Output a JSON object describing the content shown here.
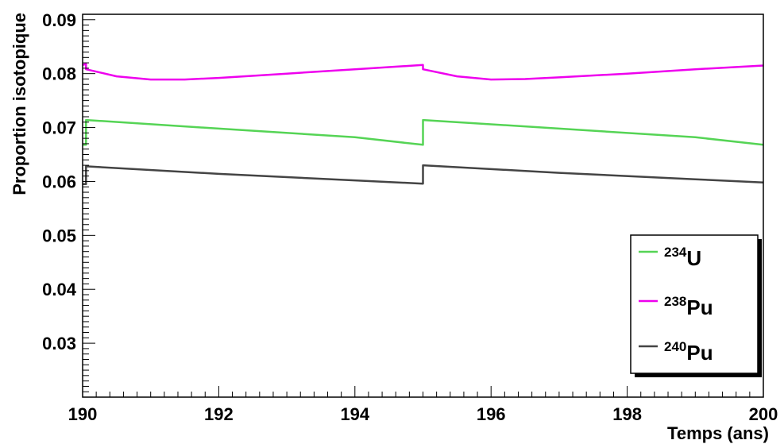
{
  "chart_data": {
    "type": "line",
    "xlabel": "Temps (ans)",
    "ylabel": "Proportion isotopique",
    "xlim": [
      190,
      200
    ],
    "ylim": [
      0.02,
      0.091
    ],
    "x_ticks": [
      "190",
      "192",
      "194",
      "196",
      "198",
      "200"
    ],
    "y_ticks": [
      "0.03",
      "0.04",
      "0.05",
      "0.06",
      "0.07",
      "0.08",
      "0.09"
    ],
    "grid": false,
    "legend_position": "bottom-right",
    "series": [
      {
        "name_sup": "234",
        "name_base": "U",
        "color": "#55d455",
        "points": [
          [
            190.0,
            0.0668
          ],
          [
            190.05,
            0.0668
          ],
          [
            190.05,
            0.0714
          ],
          [
            192.0,
            0.0698
          ],
          [
            194.0,
            0.0682
          ],
          [
            195.0,
            0.0668
          ],
          [
            195.0,
            0.0714
          ],
          [
            197.0,
            0.0698
          ],
          [
            199.0,
            0.0682
          ],
          [
            200.0,
            0.0668
          ]
        ]
      },
      {
        "name_sup": "238",
        "name_base": "Pu",
        "color": "#ee00ee",
        "points": [
          [
            190.0,
            0.0816
          ],
          [
            190.05,
            0.0818
          ],
          [
            190.05,
            0.0808
          ],
          [
            190.5,
            0.0795
          ],
          [
            191.0,
            0.0789
          ],
          [
            191.5,
            0.0789
          ],
          [
            192.0,
            0.0792
          ],
          [
            193.0,
            0.08
          ],
          [
            194.0,
            0.0808
          ],
          [
            195.0,
            0.0816
          ],
          [
            195.0,
            0.0808
          ],
          [
            195.5,
            0.0795
          ],
          [
            196.0,
            0.0789
          ],
          [
            196.5,
            0.079
          ],
          [
            197.0,
            0.0793
          ],
          [
            198.0,
            0.08
          ],
          [
            199.0,
            0.0808
          ],
          [
            200.0,
            0.0815
          ]
        ]
      },
      {
        "name_sup": "240",
        "name_base": "Pu",
        "color": "#444444",
        "points": [
          [
            190.0,
            0.0595
          ],
          [
            190.05,
            0.0595
          ],
          [
            190.05,
            0.0628
          ],
          [
            192.0,
            0.0614
          ],
          [
            194.0,
            0.0602
          ],
          [
            195.0,
            0.0596
          ],
          [
            195.0,
            0.063
          ],
          [
            197.0,
            0.0616
          ],
          [
            199.0,
            0.0604
          ],
          [
            200.0,
            0.0598
          ]
        ]
      }
    ]
  }
}
